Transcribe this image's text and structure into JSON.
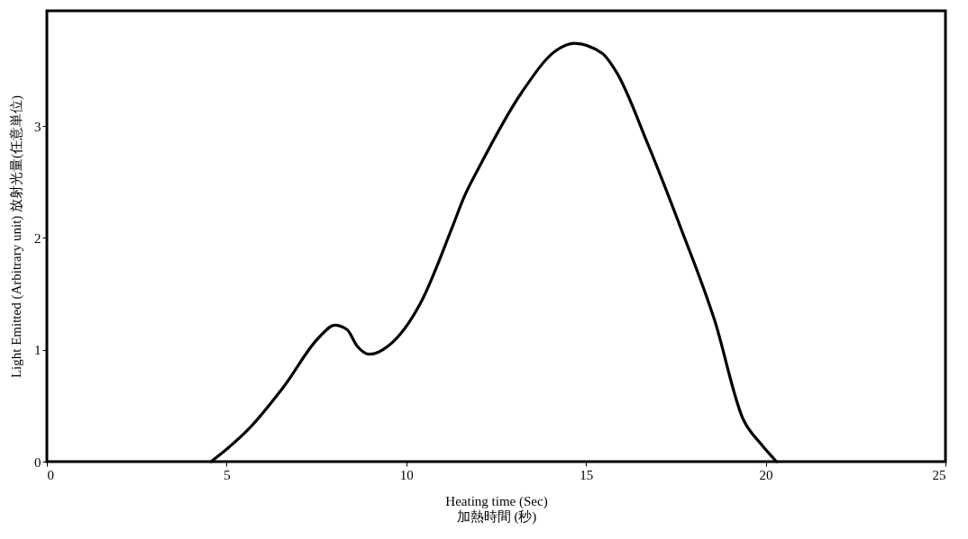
{
  "chart_data": {
    "type": "line",
    "xlabel": "Heating time (Sec)\n加熱時間 (秒)",
    "ylabel": "Light Emitted (Arbitrary unit)  放射光量(任意単位)",
    "xlim": [
      0,
      25
    ],
    "xticks": [
      0,
      5,
      10,
      15,
      20,
      25
    ],
    "ylim": [
      0,
      4.03
    ],
    "yticks": [
      0,
      1,
      2,
      3
    ],
    "grid": false,
    "line_style": "solid",
    "marker": "none",
    "series": [
      {
        "color": "#000000",
        "x": [
          4.57,
          5.61,
          6.59,
          7.57,
          8.01,
          8.35,
          8.64,
          8.98,
          9.52,
          10.4,
          11.26,
          11.6,
          12.04,
          13.21,
          14.19,
          14.67,
          15.45,
          15.85,
          16.73,
          17.61,
          18.58,
          19.37,
          19.86,
          20.3
        ],
        "values": [
          0,
          0.29,
          0.67,
          1.11,
          1.22,
          1.18,
          1.03,
          0.96,
          1.04,
          1.42,
          2.08,
          2.36,
          2.64,
          3.3,
          3.68,
          3.74,
          3.65,
          3.48,
          2.83,
          2.11,
          1.26,
          0.38,
          0.16,
          0
        ]
      }
    ]
  }
}
